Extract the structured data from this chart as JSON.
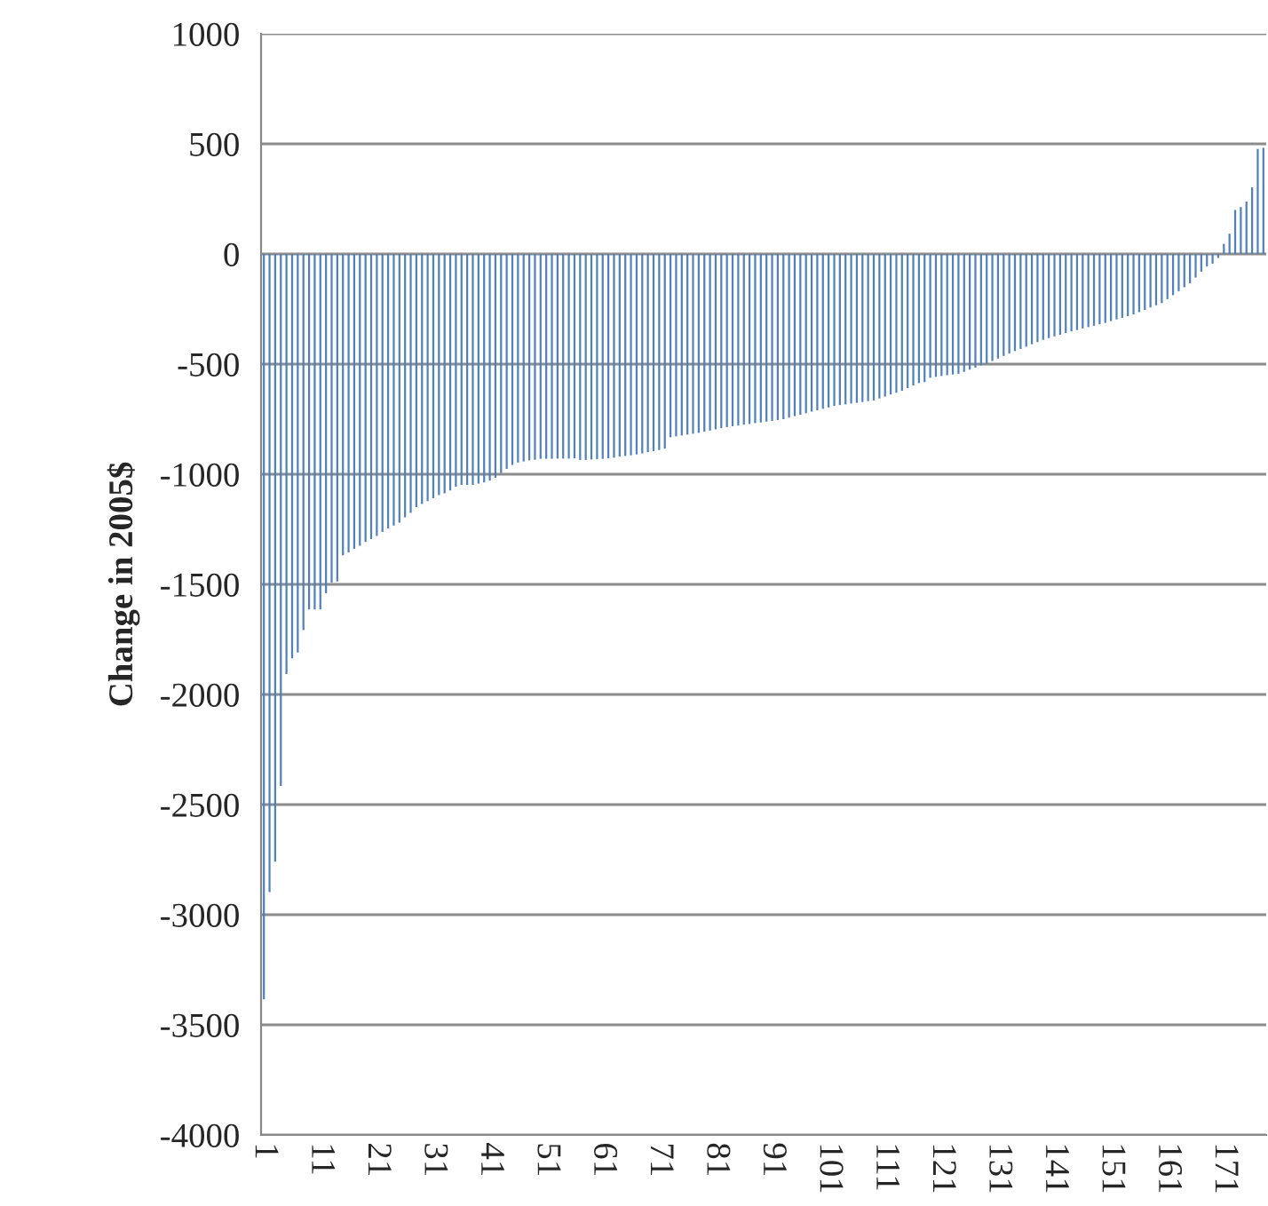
{
  "chart_data": {
    "type": "bar",
    "ylabel": "Change in 2005$",
    "categories": [
      "1",
      null,
      null,
      null,
      null,
      null,
      null,
      null,
      null,
      null,
      "11",
      null,
      null,
      null,
      null,
      null,
      null,
      null,
      null,
      null,
      "21",
      null,
      null,
      null,
      null,
      null,
      null,
      null,
      null,
      null,
      "31",
      null,
      null,
      null,
      null,
      null,
      null,
      null,
      null,
      null,
      "41",
      null,
      null,
      null,
      null,
      null,
      null,
      null,
      null,
      null,
      "51",
      null,
      null,
      null,
      null,
      null,
      null,
      null,
      null,
      null,
      "61",
      null,
      null,
      null,
      null,
      null,
      null,
      null,
      null,
      null,
      "71",
      null,
      null,
      null,
      null,
      null,
      null,
      null,
      null,
      null,
      "81",
      null,
      null,
      null,
      null,
      null,
      null,
      null,
      null,
      null,
      "91",
      null,
      null,
      null,
      null,
      null,
      null,
      null,
      null,
      null,
      "101",
      null,
      null,
      null,
      null,
      null,
      null,
      null,
      null,
      null,
      "111",
      null,
      null,
      null,
      null,
      null,
      null,
      null,
      null,
      null,
      "121",
      null,
      null,
      null,
      null,
      null,
      null,
      null,
      null,
      null,
      "131",
      null,
      null,
      null,
      null,
      null,
      null,
      null,
      null,
      null,
      "141",
      null,
      null,
      null,
      null,
      null,
      null,
      null,
      null,
      null,
      "151",
      null,
      null,
      null,
      null,
      null,
      null,
      null,
      null,
      null,
      "161",
      null,
      null,
      null,
      null,
      null,
      null,
      null,
      null,
      null,
      "171",
      null,
      null,
      null,
      null,
      null,
      null,
      null
    ],
    "values": [
      -3384,
      -2897,
      -2759,
      -2415,
      -1907,
      -1836,
      -1809,
      -1708,
      -1614,
      -1614,
      -1614,
      -1540,
      -1492,
      -1487,
      -1368,
      -1355,
      -1339,
      -1325,
      -1307,
      -1294,
      -1280,
      -1262,
      -1246,
      -1233,
      -1220,
      -1196,
      -1175,
      -1149,
      -1135,
      -1122,
      -1109,
      -1095,
      -1087,
      -1074,
      -1056,
      -1048,
      -1048,
      -1048,
      -1042,
      -1037,
      -1029,
      -1016,
      -995,
      -976,
      -958,
      -947,
      -942,
      -937,
      -934,
      -930,
      -930,
      -930,
      -929,
      -929,
      -929,
      -928,
      -935,
      -935,
      -933,
      -932,
      -930,
      -928,
      -925,
      -920,
      -917,
      -914,
      -910,
      -905,
      -900,
      -895,
      -890,
      -884,
      -832,
      -828,
      -824,
      -820,
      -816,
      -812,
      -807,
      -802,
      -796,
      -791,
      -786,
      -782,
      -779,
      -775,
      -772,
      -768,
      -765,
      -761,
      -758,
      -754,
      -750,
      -743,
      -736,
      -730,
      -723,
      -716,
      -710,
      -703,
      -697,
      -690,
      -686,
      -683,
      -679,
      -676,
      -672,
      -668,
      -665,
      -656,
      -647,
      -638,
      -630,
      -621,
      -609,
      -597,
      -586,
      -582,
      -562,
      -558,
      -554,
      -550,
      -547,
      -544,
      -535,
      -525,
      -516,
      -506,
      -497,
      -486,
      -475,
      -463,
      -452,
      -441,
      -431,
      -421,
      -410,
      -400,
      -390,
      -382,
      -374,
      -367,
      -359,
      -351,
      -345,
      -338,
      -332,
      -326,
      -319,
      -313,
      -305,
      -297,
      -290,
      -282,
      -274,
      -264,
      -254,
      -243,
      -233,
      -223,
      -205,
      -187,
      -169,
      -151,
      -133,
      -107,
      -80,
      -56,
      -44,
      -18,
      46,
      92,
      200,
      213,
      238,
      303,
      477,
      482
    ],
    "color": "#4f81bd",
    "ylim": [
      -4000,
      1000
    ],
    "yticks": [
      -4000,
      -3500,
      -3000,
      -2500,
      -2000,
      -1500,
      -1000,
      -500,
      0,
      500,
      1000
    ],
    "grid": "y",
    "legend": false
  }
}
